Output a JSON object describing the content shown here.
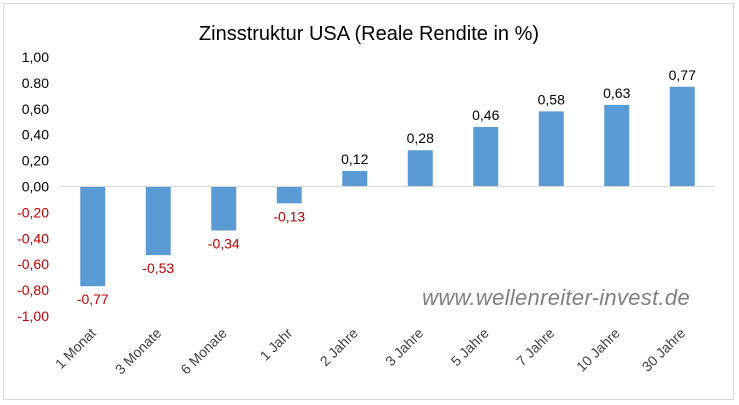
{
  "chart_data": {
    "type": "bar",
    "title": "Zinsstruktur USA (Reale Rendite in %)",
    "categories": [
      "1 Monat",
      "3 Monate",
      "6 Monate",
      "1 Jahr",
      "2 Jahre",
      "3 Jahre",
      "5 Jahre",
      "7 Jahre",
      "10 Jahre",
      "30 Jahre"
    ],
    "values": [
      -0.77,
      -0.53,
      -0.34,
      -0.13,
      0.12,
      0.28,
      0.46,
      0.58,
      0.63,
      0.77
    ],
    "data_labels": [
      "-0,77",
      "-0,53",
      "-0,34",
      "-0,13",
      "0,12",
      "0,28",
      "0,46",
      "0,58",
      "0,63",
      "0,77"
    ],
    "ylim": [
      -1.0,
      1.0
    ],
    "yticks": [
      {
        "value": 1.0,
        "label": "1,00"
      },
      {
        "value": 0.8,
        "label": "0.80"
      },
      {
        "value": 0.6,
        "label": "0,60"
      },
      {
        "value": 0.4,
        "label": "0,40"
      },
      {
        "value": 0.2,
        "label": "0,20"
      },
      {
        "value": 0.0,
        "label": "0,00"
      },
      {
        "value": -0.2,
        "label": "-0,20"
      },
      {
        "value": -0.4,
        "label": "-0,40"
      },
      {
        "value": -0.6,
        "label": "-0,60"
      },
      {
        "value": -0.8,
        "label": "-0,80"
      },
      {
        "value": -1.0,
        "label": "-1,00"
      }
    ],
    "xlabel": "",
    "ylabel": "",
    "grid": false,
    "colors": {
      "bar": "#5b9bd5",
      "positive_text": "#000000",
      "negative_text": "#c00000",
      "axis_line": "#d9d9d9"
    }
  },
  "watermark": "www.wellenreiter-invest.de"
}
